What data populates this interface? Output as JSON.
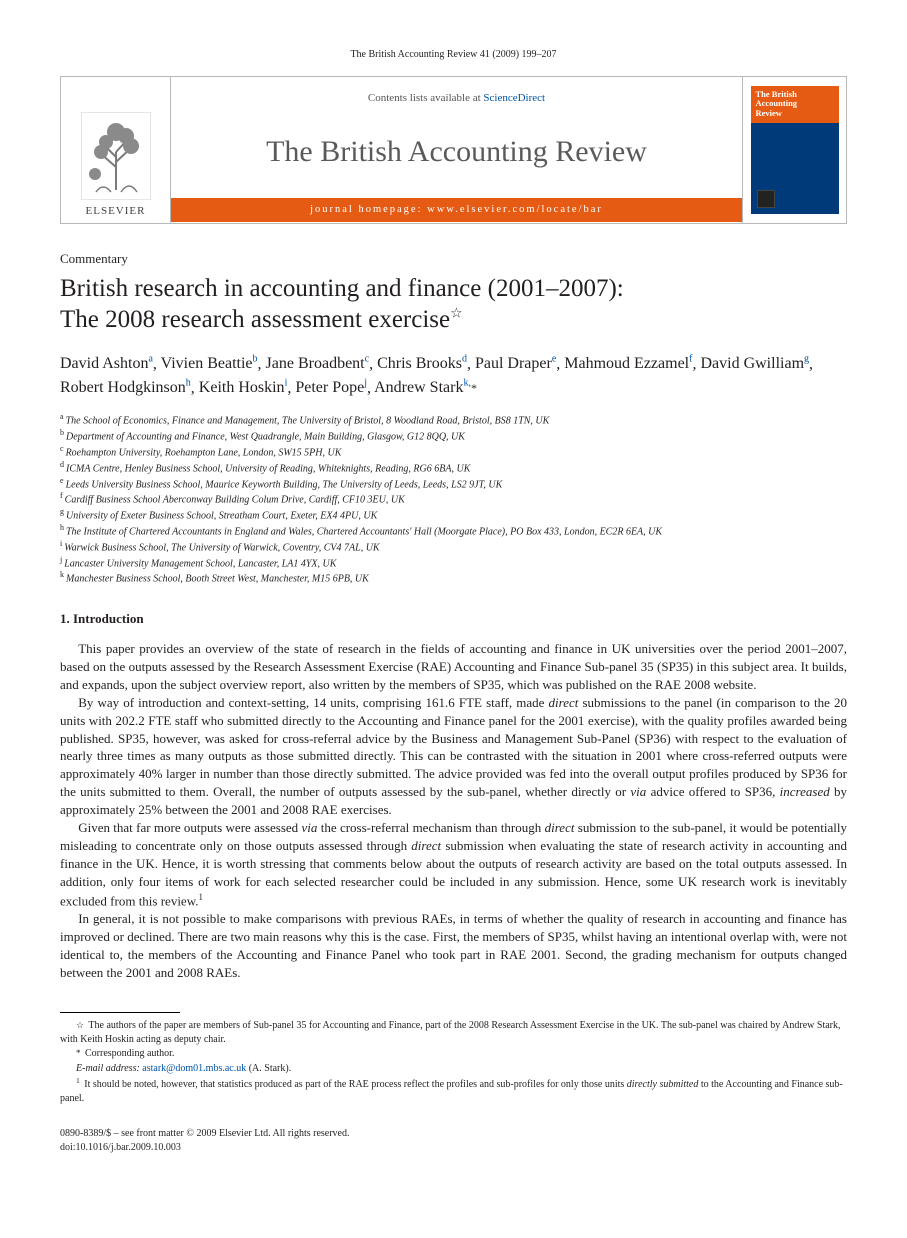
{
  "running_head": "The British Accounting Review 41 (2009) 199–207",
  "masthead": {
    "contents_prefix": "Contents lists available at ",
    "contents_link": "ScienceDirect",
    "journal_name": "The British Accounting Review",
    "homepage_label": "journal homepage: www.elsevier.com/locate/bar",
    "publisher_word": "ELSEVIER",
    "cover_title_lines": "The British\nAccounting\nReview",
    "logo_fill": "#7a7a7a",
    "orange": "#e55b13",
    "navy": "#003a78"
  },
  "article_type": "Commentary",
  "title_line1": "British research in accounting and finance (2001–2007):",
  "title_line2": "The 2008 research assessment exercise",
  "title_star": "☆",
  "authors": [
    {
      "name": "David Ashton",
      "aff": "a"
    },
    {
      "name": "Vivien Beattie",
      "aff": "b"
    },
    {
      "name": "Jane Broadbent",
      "aff": "c"
    },
    {
      "name": "Chris Brooks",
      "aff": "d"
    },
    {
      "name": "Paul Draper",
      "aff": "e"
    },
    {
      "name": "Mahmoud Ezzamel",
      "aff": "f"
    },
    {
      "name": "David Gwilliam",
      "aff": "g"
    },
    {
      "name": "Robert Hodgkinson",
      "aff": "h"
    },
    {
      "name": "Keith Hoskin",
      "aff": "i"
    },
    {
      "name": "Peter Pope",
      "aff": "j"
    },
    {
      "name": "Andrew Stark",
      "aff": "k",
      "corr": true
    }
  ],
  "affiliations": [
    {
      "key": "a",
      "text": "The School of Economics, Finance and Management, The University of Bristol, 8 Woodland Road, Bristol, BS8 1TN, UK"
    },
    {
      "key": "b",
      "text": "Department of Accounting and Finance, West Quadrangle, Main Building, Glasgow, G12 8QQ, UK"
    },
    {
      "key": "c",
      "text": "Roehampton University, Roehampton Lane, London, SW15 5PH, UK"
    },
    {
      "key": "d",
      "text": "ICMA Centre, Henley Business School, University of Reading, Whiteknights, Reading, RG6 6BA, UK"
    },
    {
      "key": "e",
      "text": "Leeds University Business School, Maurice Keyworth Building, The University of Leeds, Leeds, LS2 9JT, UK"
    },
    {
      "key": "f",
      "text": "Cardiff Business School Aberconway Building Colum Drive, Cardiff, CF10 3EU, UK"
    },
    {
      "key": "g",
      "text": "University of Exeter Business School, Streatham Court, Exeter, EX4 4PU, UK"
    },
    {
      "key": "h",
      "text": "The Institute of Chartered Accountants in England and Wales, Chartered Accountants' Hall (Moorgate Place), PO Box 433, London,  EC2R 6EA, UK"
    },
    {
      "key": "i",
      "text": "Warwick Business School, The University of Warwick, Coventry, CV4 7AL, UK"
    },
    {
      "key": "j",
      "text": "Lancaster University Management School, Lancaster, LA1 4YX, UK"
    },
    {
      "key": "k",
      "text": "Manchester Business School, Booth Street West, Manchester, M15 6PB, UK"
    }
  ],
  "section_heading": "1. Introduction",
  "paragraphs": [
    "This paper provides an overview of the state of research in the fields of accounting and finance in UK universities over the period 2001–2007, based on the outputs assessed by the Research Assessment Exercise (RAE) Accounting and Finance Sub-panel 35 (SP35) in this subject area. It builds, and expands, upon the subject overview report, also written by the members of SP35, which was published on the RAE 2008 website.",
    "By way of introduction and context-setting, 14 units, comprising 161.6 FTE staff, made direct submissions to the panel (in comparison to the 20 units with 202.2 FTE staff who submitted directly to the Accounting and Finance panel for the 2001 exercise), with the quality profiles awarded being published. SP35, however, was asked for cross-referral advice by the Business and Management Sub-Panel (SP36) with respect to the evaluation of nearly three times as many outputs as those submitted directly. This can be contrasted with the situation in 2001 where cross-referred outputs were approximately 40% larger in number than those directly submitted. The advice provided was fed into the overall output profiles produced by SP36 for the units submitted to them. Overall, the number of outputs assessed by the sub-panel, whether directly or via advice offered to SP36, increased by approximately 25% between the 2001 and 2008 RAE exercises.",
    "Given that far more outputs were assessed via the cross-referral mechanism than through direct submission to the sub-panel, it would be potentially misleading to concentrate only on those outputs assessed through direct submission when evaluating the state of research activity in accounting and finance in the UK. Hence, it is worth stressing that comments below about the outputs of research activity are based on the total outputs assessed. In addition, only four items of work for each selected researcher could be included in any submission. Hence, some UK research work is inevitably excluded from this review.",
    "In general, it is not possible to make comparisons with previous RAEs, in terms of whether the quality of research in accounting and finance has improved or declined. There are two main reasons why this is the case. First, the members of SP35, whilst having an intentional overlap with, were not identical to, the members of the Accounting and Finance Panel who took part in RAE 2001. Second, the grading mechanism for outputs changed between the 2001 and 2008 RAEs."
  ],
  "fn_in_text": {
    "p_index": 2,
    "marker": "1"
  },
  "footnotes": {
    "star": "The authors of the paper are members of Sub-panel 35 for Accounting and Finance, part of the 2008 Research Assessment Exercise in the UK. The sub-panel was chaired by Andrew Stark, with Keith Hoskin acting as deputy chair.",
    "corr_label": "Corresponding author.",
    "email_label": "E-mail address:",
    "email": "astark@dom01.mbs.ac.uk",
    "email_who": "(A. Stark).",
    "note1": "It should be noted, however, that statistics produced as part of the RAE process reflect the profiles and sub-profiles for only those units directly submitted to the Accounting and Finance sub-panel."
  },
  "copyright": {
    "line1": "0890-8389/$ – see front matter © 2009 Elsevier Ltd. All rights reserved.",
    "line2": "doi:10.1016/j.bar.2009.10.003"
  }
}
